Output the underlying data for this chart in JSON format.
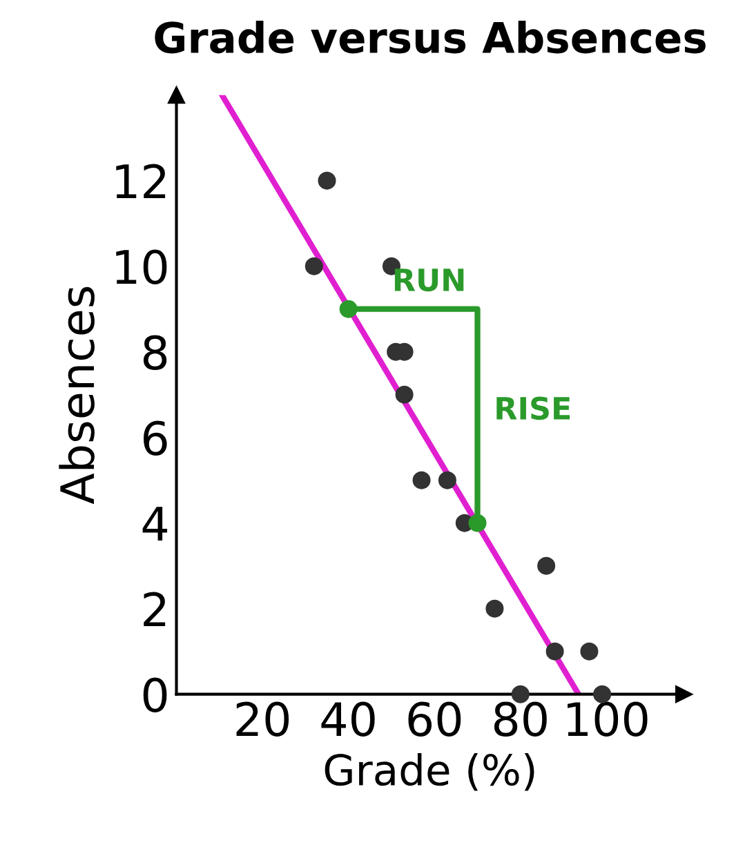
{
  "chart_data": {
    "type": "scatter",
    "title": "Grade versus Absences",
    "xlabel": "Grade (%)",
    "ylabel": "Absences",
    "xlim": [
      0,
      118
    ],
    "ylim": [
      0,
      14
    ],
    "xticks": [
      20,
      40,
      60,
      80,
      100
    ],
    "yticks": [
      0,
      2,
      4,
      6,
      8,
      10,
      12
    ],
    "grid": false,
    "marker": "circle",
    "series": [
      {
        "color": "#333333",
        "x": [
          35,
          32,
          50,
          51,
          53,
          53,
          57,
          63,
          67,
          70,
          74,
          86,
          88,
          96,
          80,
          99
        ],
        "values": [
          12,
          10,
          10,
          8,
          8,
          7,
          5,
          5,
          4,
          null,
          2,
          3,
          1,
          1,
          0,
          0
        ]
      },
      {
        "type": "line",
        "color": "#e020d0",
        "marker": "none",
        "x": [
          10.6,
          93.5
        ],
        "values": [
          14,
          0
        ]
      },
      {
        "type": "line",
        "color": "#2a9a2a",
        "marker": "none",
        "x": [
          40,
          70,
          70
        ],
        "values": [
          9,
          9,
          4
        ]
      },
      {
        "color": "#2a9a2a",
        "x": [
          40,
          70
        ],
        "values": [
          9,
          4
        ]
      }
    ],
    "annotations": [
      "RUN",
      "RISE"
    ]
  }
}
